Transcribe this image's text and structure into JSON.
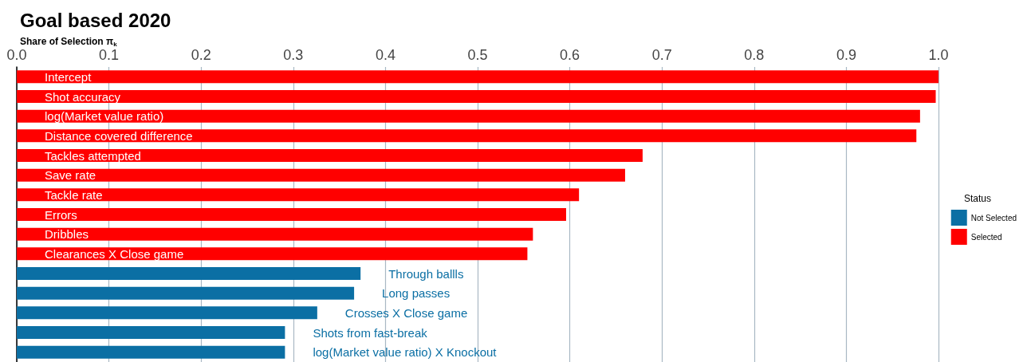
{
  "chart_data": {
    "type": "bar",
    "orientation": "horizontal",
    "title": "Goal based 2020",
    "xlabel": "Share of Selection π$_{k}$",
    "legend_title": "Status",
    "legend": "right",
    "categories": [
      "Intercept",
      "Shot accuracy",
      "log(Market value ratio)",
      "Distance covered difference",
      "Tackles attempted",
      "Save rate",
      "Tackle rate",
      "Errors",
      "Dribbles",
      "Clearances X Close game",
      "Through ballls",
      "Long passes",
      "Crosses X Close game",
      "Shots from fast-break",
      "log(Market value ratio) X Knockout"
    ],
    "series": [
      {
        "name": "Not Selected",
        "color": "#0b6fa4",
        "values": [
          null,
          null,
          null,
          null,
          null,
          null,
          null,
          null,
          null,
          null,
          0.373,
          0.366,
          0.326,
          0.291,
          0.291
        ]
      },
      {
        "name": "Selected",
        "color": "#ff0000",
        "values": [
          1.0,
          0.997,
          0.98,
          0.976,
          0.679,
          0.66,
          0.61,
          0.596,
          0.56,
          0.554,
          null,
          null,
          null,
          null,
          null
        ]
      }
    ],
    "xlim": [
      0,
      1
    ],
    "xticks": [
      {
        "value": 0,
        "label": "0.0"
      },
      0.1,
      0.2,
      0.3,
      0.4,
      0.5,
      0.6,
      0.7,
      0.8,
      0.9,
      {
        "value": 1,
        "label": "1.0"
      }
    ],
    "grid": "x"
  }
}
